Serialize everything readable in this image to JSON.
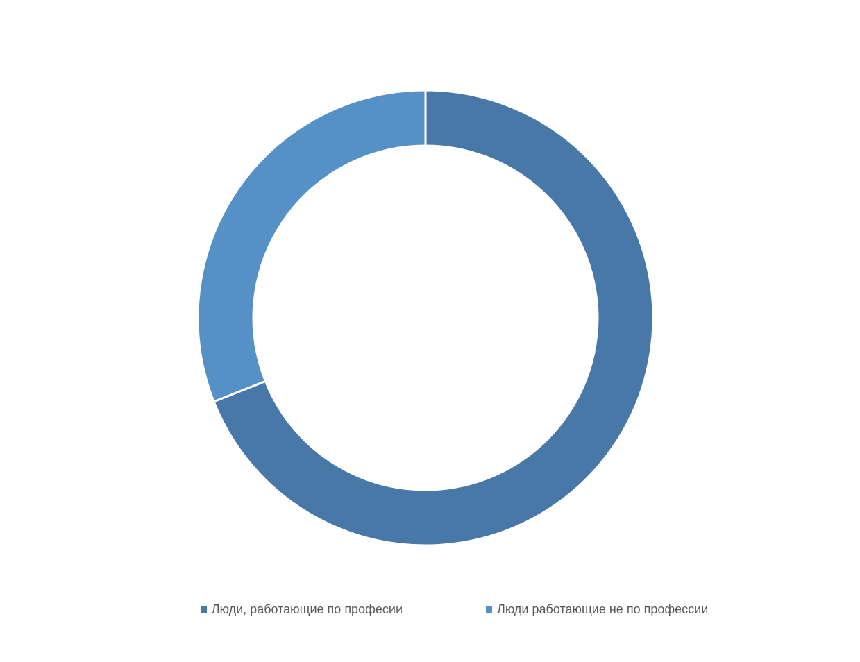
{
  "chart_data": {
    "type": "pie",
    "variant": "doughnut",
    "title": "",
    "slices": [
      {
        "label": "Люди, работающие по професии",
        "value": 69,
        "color": "#4878a8"
      },
      {
        "label": "Люди работающие не по профессии",
        "value": 31,
        "color": "#5591c7"
      }
    ],
    "legend_position": "bottom",
    "border_color": "#d9d9d9"
  },
  "legend": {
    "items": [
      {
        "label": "Люди, работающие по професии",
        "color": "#4878a8"
      },
      {
        "label": "Люди работающие не по профессии",
        "color": "#5591c7"
      }
    ]
  }
}
